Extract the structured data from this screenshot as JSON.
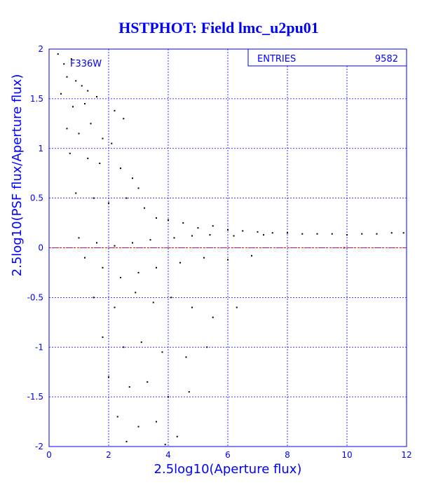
{
  "chart_data": {
    "type": "scatter",
    "title": "HSTPHOT: Field lmc_u2pu01",
    "xlabel": "2.5log10(Aperture flux)",
    "ylabel": "2.5log10(PSF flux/Aperture flux)",
    "xlim": [
      0,
      12
    ],
    "ylim": [
      -2,
      2
    ],
    "x_ticks": [
      0,
      2,
      4,
      6,
      8,
      10,
      12
    ],
    "y_ticks": [
      -2,
      -1.5,
      -1,
      -0.5,
      0,
      0.5,
      1,
      1.5,
      2
    ],
    "grid": true,
    "reference_line_y": 0,
    "filter_label": "F336W",
    "stats": {
      "label": "ENTRIES",
      "value": "9582"
    },
    "entries": 9582,
    "series": [
      {
        "points": [
          [
            0.3,
            1.95
          ],
          [
            0.5,
            1.85
          ],
          [
            0.6,
            1.72
          ],
          [
            0.75,
            1.9
          ],
          [
            0.9,
            1.68
          ],
          [
            1.1,
            1.63
          ],
          [
            1.3,
            1.58
          ],
          [
            0.4,
            1.55
          ],
          [
            0.8,
            1.42
          ],
          [
            1.2,
            1.45
          ],
          [
            1.6,
            1.52
          ],
          [
            2.2,
            1.38
          ],
          [
            2.5,
            1.3
          ],
          [
            0.6,
            1.2
          ],
          [
            1.0,
            1.15
          ],
          [
            1.4,
            1.25
          ],
          [
            1.8,
            1.1
          ],
          [
            2.1,
            1.05
          ],
          [
            0.7,
            0.95
          ],
          [
            1.3,
            0.9
          ],
          [
            1.7,
            0.85
          ],
          [
            2.4,
            0.8
          ],
          [
            2.8,
            0.7
          ],
          [
            3.0,
            0.6
          ],
          [
            0.9,
            0.55
          ],
          [
            1.5,
            0.5
          ],
          [
            2.0,
            0.45
          ],
          [
            2.6,
            0.5
          ],
          [
            3.2,
            0.4
          ],
          [
            3.6,
            0.3
          ],
          [
            4.0,
            0.28
          ],
          [
            4.5,
            0.25
          ],
          [
            5.0,
            0.2
          ],
          [
            5.5,
            0.22
          ],
          [
            6.0,
            0.18
          ],
          [
            6.5,
            0.17
          ],
          [
            7.0,
            0.16
          ],
          [
            7.5,
            0.15
          ],
          [
            8.0,
            0.15
          ],
          [
            8.5,
            0.14
          ],
          [
            9.0,
            0.14
          ],
          [
            9.5,
            0.14
          ],
          [
            10.0,
            0.13
          ],
          [
            10.5,
            0.14
          ],
          [
            11.0,
            0.14
          ],
          [
            11.5,
            0.15
          ],
          [
            11.9,
            0.15
          ],
          [
            1.0,
            0.1
          ],
          [
            1.6,
            0.05
          ],
          [
            2.2,
            0.02
          ],
          [
            2.8,
            0.05
          ],
          [
            3.4,
            0.08
          ],
          [
            4.2,
            0.1
          ],
          [
            4.8,
            0.12
          ],
          [
            5.4,
            0.13
          ],
          [
            6.2,
            0.12
          ],
          [
            7.2,
            0.13
          ],
          [
            9.9,
            0.0
          ],
          [
            1.2,
            -0.1
          ],
          [
            1.8,
            -0.2
          ],
          [
            2.4,
            -0.3
          ],
          [
            3.0,
            -0.25
          ],
          [
            3.6,
            -0.2
          ],
          [
            4.4,
            -0.15
          ],
          [
            5.2,
            -0.1
          ],
          [
            6.0,
            -0.12
          ],
          [
            6.8,
            -0.08
          ],
          [
            1.5,
            -0.5
          ],
          [
            2.2,
            -0.6
          ],
          [
            2.9,
            -0.45
          ],
          [
            3.5,
            -0.55
          ],
          [
            4.1,
            -0.5
          ],
          [
            4.8,
            -0.6
          ],
          [
            5.5,
            -0.7
          ],
          [
            6.3,
            -0.6
          ],
          [
            1.8,
            -0.9
          ],
          [
            2.5,
            -1.0
          ],
          [
            3.1,
            -0.95
          ],
          [
            3.8,
            -1.05
          ],
          [
            4.6,
            -1.1
          ],
          [
            5.3,
            -1.0
          ],
          [
            2.0,
            -1.3
          ],
          [
            2.7,
            -1.4
          ],
          [
            3.3,
            -1.35
          ],
          [
            4.0,
            -1.5
          ],
          [
            4.7,
            -1.45
          ],
          [
            2.3,
            -1.7
          ],
          [
            3.0,
            -1.8
          ],
          [
            3.6,
            -1.75
          ],
          [
            4.3,
            -1.9
          ],
          [
            2.6,
            -1.95
          ],
          [
            3.9,
            -1.98
          ]
        ]
      }
    ]
  }
}
